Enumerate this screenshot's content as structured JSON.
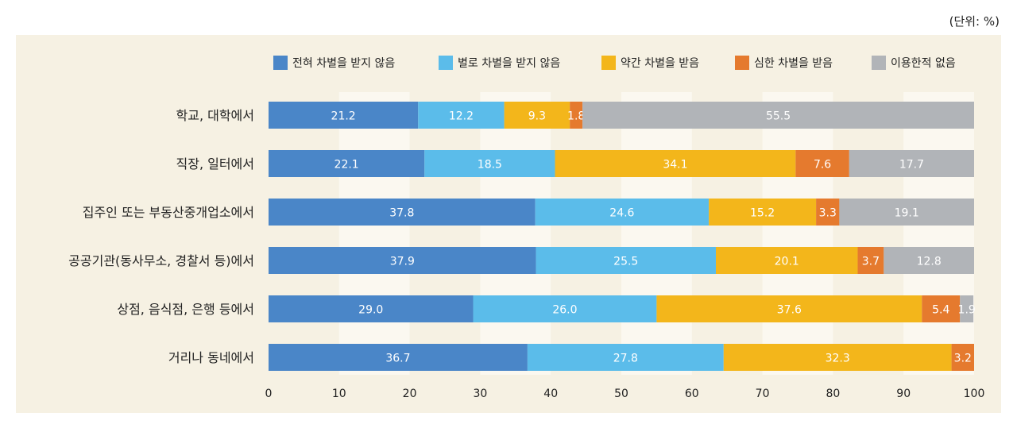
{
  "unit_label": "(단위: %)",
  "colors": {
    "panel_bg": "#f6f1e3",
    "grid_band": "#fbf8f0",
    "series": [
      "#4a86c8",
      "#5bbcea",
      "#f3b61b",
      "#e57a2e",
      "#b1b4b8"
    ]
  },
  "chart_data": {
    "type": "bar",
    "orientation": "horizontal",
    "stacked": true,
    "title": "",
    "xlabel": "",
    "ylabel": "",
    "xlim": [
      0,
      100
    ],
    "xticks": [
      0,
      10,
      20,
      30,
      40,
      50,
      60,
      70,
      80,
      90,
      100
    ],
    "legend_position": "top",
    "categories": [
      "학교, 대학에서",
      "직장, 일터에서",
      "집주인 또는 부동산중개업소에서",
      "공공기관(동사무소, 경찰서 등)에서",
      "상점, 음식점, 은행 등에서",
      "거리나 동네에서"
    ],
    "series": [
      {
        "name": "전혀 차별을 받지 않음",
        "values": [
          21.2,
          22.1,
          37.8,
          37.9,
          29.0,
          36.7
        ],
        "labels": [
          "21.2",
          "22.1",
          "37.8",
          "37.9",
          "29.0",
          "36.7"
        ]
      },
      {
        "name": "별로 차별을 받지 않음",
        "values": [
          12.2,
          18.5,
          24.6,
          25.5,
          26.0,
          27.8
        ],
        "labels": [
          "12.2",
          "18.5",
          "24.6",
          "25.5",
          "26.0",
          "27.8"
        ]
      },
      {
        "name": "약간 차별을 받음",
        "values": [
          9.3,
          34.1,
          15.2,
          20.1,
          37.6,
          32.3
        ],
        "labels": [
          "9.3",
          "34.1",
          "15.2",
          "20.1",
          "37.6",
          "32.3"
        ]
      },
      {
        "name": "심한 차별을 받음",
        "values": [
          1.8,
          7.6,
          3.3,
          3.7,
          5.4,
          3.2
        ],
        "labels": [
          "1.8",
          "7.6",
          "3.3",
          "3.7",
          "5.4",
          "3.2"
        ]
      },
      {
        "name": "이용한적 없음",
        "values": [
          55.5,
          17.7,
          19.1,
          12.8,
          1.9,
          0
        ],
        "labels": [
          "55.5",
          "17.7",
          "19.1",
          "12.8",
          "1.9",
          ""
        ]
      }
    ]
  }
}
